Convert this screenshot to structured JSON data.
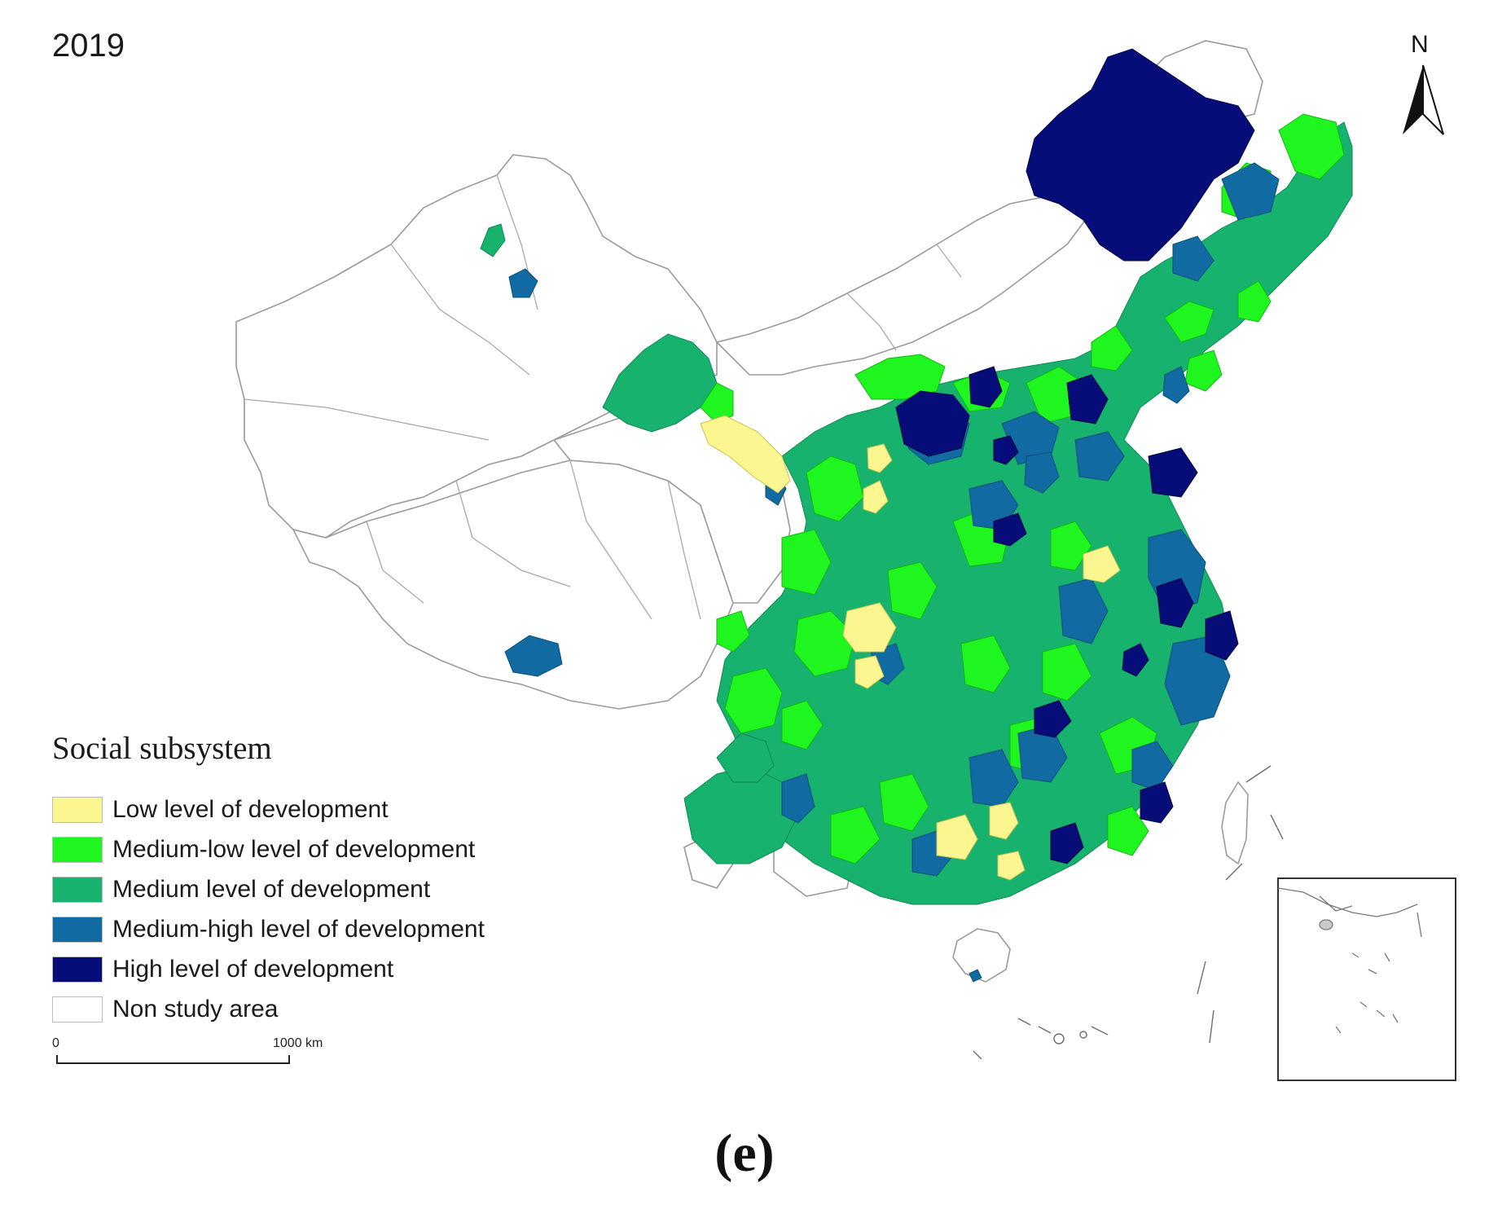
{
  "year": "2019",
  "north_label": "N",
  "legend": {
    "title": "Social subsystem",
    "items": [
      {
        "label": "Low level of development",
        "color": "#fbf68f"
      },
      {
        "label": "Medium-low level of development",
        "color": "#1ff51f"
      },
      {
        "label": "Medium level of development",
        "color": "#17b26e"
      },
      {
        "label": "Medium-high level of development",
        "color": "#116aa1"
      },
      {
        "label": "High level of development",
        "color": "#060d78"
      },
      {
        "label": "Non study area",
        "color": "#ffffff"
      }
    ]
  },
  "scale": {
    "start": "0",
    "end": "1000 km"
  },
  "caption": "(e)",
  "colors": {
    "border": "#9a9a9a",
    "outline": "#555555"
  }
}
